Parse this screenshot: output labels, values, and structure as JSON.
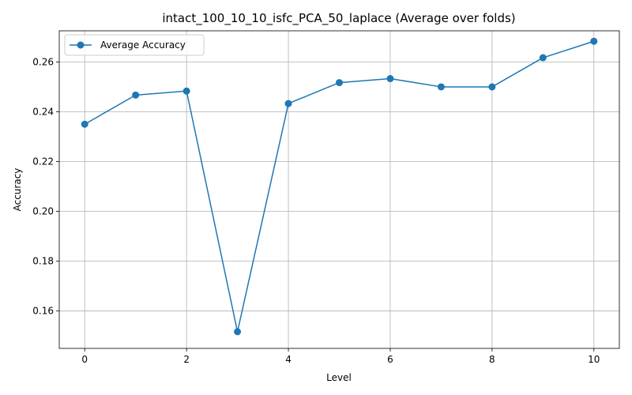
{
  "chart_data": {
    "type": "line",
    "title": "intact_100_10_10_isfc_PCA_50_laplace (Average over folds)",
    "xlabel": "Level",
    "ylabel": "Accuracy",
    "xlim": [
      -0.5,
      10.5
    ],
    "ylim": [
      0.145,
      0.2725
    ],
    "xticks": [
      0,
      2,
      4,
      6,
      8,
      10
    ],
    "yticks": [
      0.16,
      0.18,
      0.2,
      0.22,
      0.24,
      0.26
    ],
    "ytick_labels": [
      "0.16",
      "0.18",
      "0.20",
      "0.22",
      "0.24",
      "0.26"
    ],
    "grid": true,
    "legend_position": "top-left",
    "x": [
      0,
      1,
      2,
      3,
      4,
      5,
      6,
      7,
      8,
      9,
      10
    ],
    "series": [
      {
        "name": "Average Accuracy",
        "color": "#1f77b4",
        "marker": "circle",
        "values": [
          0.235,
          0.2467,
          0.2483,
          0.1517,
          0.2433,
          0.2517,
          0.2533,
          0.25,
          0.25,
          0.2617,
          0.2683
        ]
      }
    ]
  }
}
